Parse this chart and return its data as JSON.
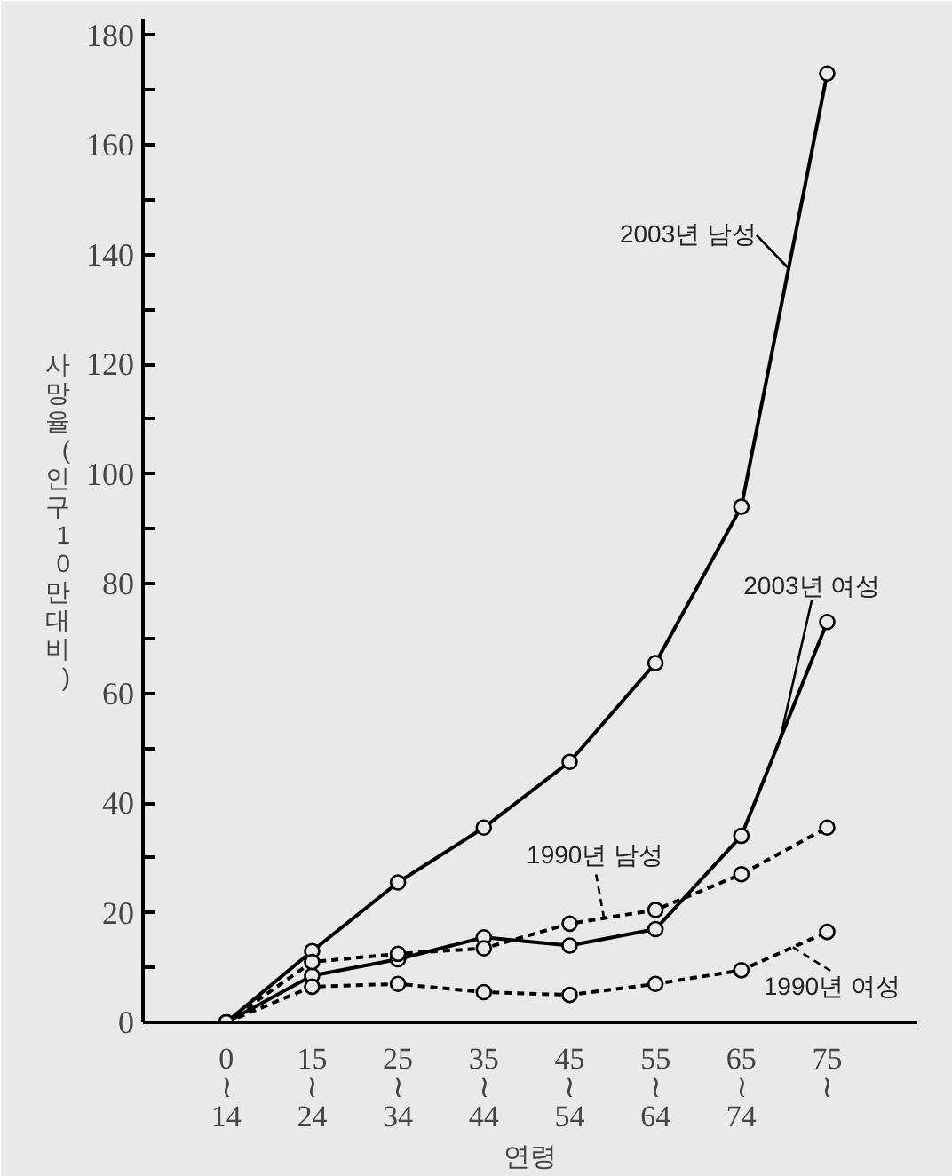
{
  "chart_data": {
    "type": "line",
    "ylabel": "사망율(인구10만대비)",
    "xlabel": "연령",
    "categories": [
      "0\n≀\n14",
      "15\n≀\n24",
      "25\n≀\n34",
      "35\n≀\n44",
      "45\n≀\n54",
      "55\n≀\n64",
      "65\n≀\n74",
      "75\n≀"
    ],
    "ylim": [
      0,
      183
    ],
    "yticks": [
      0,
      {
        "value": 10,
        "label": null
      },
      20,
      {
        "value": 30,
        "label": null
      },
      40,
      {
        "value": 50,
        "label": null
      },
      60,
      {
        "value": 70,
        "label": null
      },
      80,
      {
        "value": 90,
        "label": null
      },
      100,
      {
        "value": 110,
        "label": null
      },
      120,
      {
        "value": 130,
        "label": null
      },
      140,
      {
        "value": 150,
        "label": null
      },
      160,
      {
        "value": 170,
        "label": null
      },
      180
    ],
    "marker": "circle",
    "series": [
      {
        "name": "2003년 남성",
        "color": "#000000",
        "line_style": "solid",
        "values": [
          0,
          13,
          25.5,
          35.5,
          47.5,
          65.5,
          94,
          173
        ]
      },
      {
        "name": "2003년 여성",
        "color": "#000000",
        "line_style": "solid",
        "values": [
          0,
          8.5,
          11.5,
          15.5,
          14,
          17,
          34,
          73
        ]
      },
      {
        "name": "1990년 남성",
        "color": "#000000",
        "line_style": "dashed",
        "values": [
          0,
          11,
          12.5,
          13.5,
          18,
          20.5,
          27,
          35.5
        ]
      },
      {
        "name": "1990년 여성",
        "color": "#000000",
        "line_style": "dashed",
        "values": [
          0,
          6.5,
          7,
          5.5,
          5,
          7,
          9.5,
          16.5
        ]
      }
    ]
  }
}
